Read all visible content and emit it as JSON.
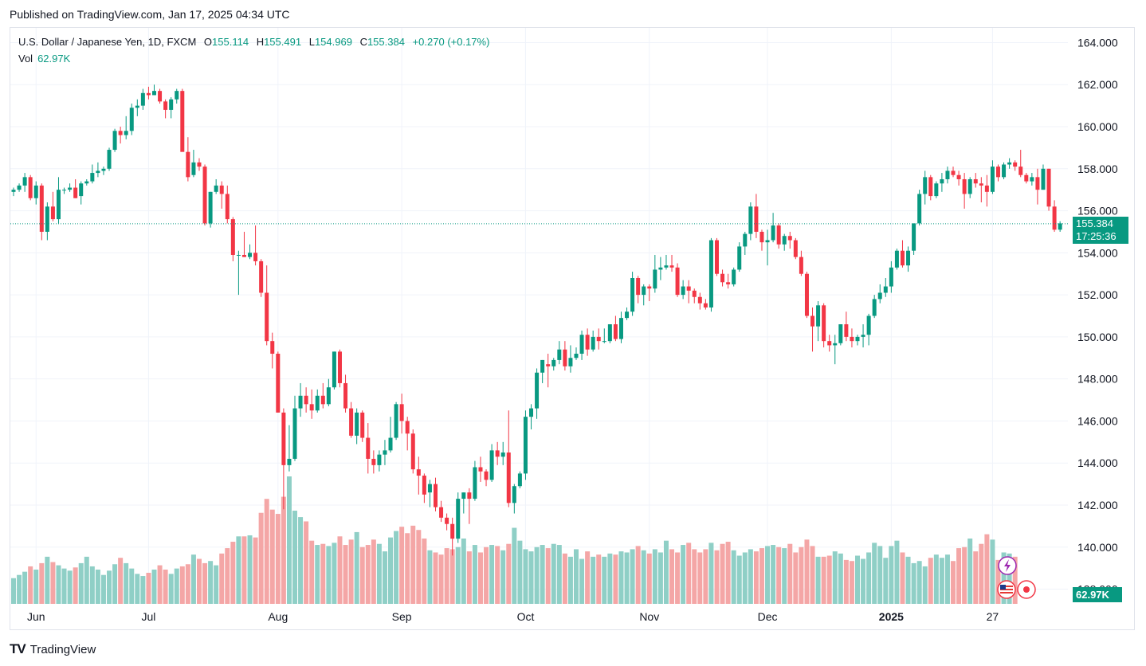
{
  "published": "Published on TradingView.com, Jan 17, 2025 04:34 UTC",
  "legend": {
    "symbol": "U.S. Dollar / Japanese Yen, 1D, FXCM",
    "o_label": "O",
    "o": "155.114",
    "h_label": "H",
    "h": "155.491",
    "l_label": "L",
    "l": "154.969",
    "c_label": "C",
    "c": "155.384",
    "change": "+0.270 (+0.17%)"
  },
  "volume": {
    "label": "Vol",
    "value": "62.97K"
  },
  "price_tag": {
    "value": "155.384",
    "countdown": "17:25:36"
  },
  "vol_tag": "62.97K",
  "footer": {
    "brand": "TradingView",
    "logo": "TV"
  },
  "colors": {
    "up": "#089981",
    "down": "#f23645",
    "vol_up": "#8fcfc6",
    "vol_down": "#f4a6a6",
    "grid": "#f0f3fa"
  },
  "chart_data": {
    "type": "candlestick",
    "y_ticks": [
      "164.000",
      "162.000",
      "160.000",
      "158.000",
      "156.000",
      "154.000",
      "152.000",
      "150.000",
      "148.000",
      "146.000",
      "144.000",
      "142.000",
      "140.000",
      "138.000"
    ],
    "ylim": [
      137.3,
      164.7
    ],
    "x_ticks": [
      {
        "label": "Jun",
        "bar": 4
      },
      {
        "label": "Jul",
        "bar": 24
      },
      {
        "label": "Aug",
        "bar": 47
      },
      {
        "label": "Sep",
        "bar": 69
      },
      {
        "label": "Oct",
        "bar": 91
      },
      {
        "label": "Nov",
        "bar": 113
      },
      {
        "label": "Dec",
        "bar": 134
      },
      {
        "label": "2025",
        "bar": 156
      },
      {
        "label": "27",
        "bar": 174
      }
    ],
    "ohlc": [
      [
        156.9,
        157.1,
        156.7,
        157.0
      ],
      [
        157.0,
        157.3,
        156.9,
        157.2
      ],
      [
        157.2,
        157.8,
        156.9,
        157.6
      ],
      [
        157.6,
        157.7,
        156.5,
        156.6
      ],
      [
        156.6,
        157.4,
        156.3,
        157.2
      ],
      [
        157.2,
        157.3,
        154.6,
        155.0
      ],
      [
        155.0,
        156.4,
        154.6,
        156.2
      ],
      [
        156.2,
        156.9,
        155.5,
        155.6
      ],
      [
        155.6,
        157.6,
        155.4,
        157.0
      ],
      [
        157.0,
        157.1,
        156.8,
        157.0
      ],
      [
        157.0,
        157.3,
        156.9,
        157.1
      ],
      [
        157.1,
        157.5,
        156.6,
        156.6
      ],
      [
        156.7,
        157.4,
        156.3,
        157.3
      ],
      [
        157.3,
        157.5,
        157.2,
        157.4
      ],
      [
        157.4,
        158.2,
        157.3,
        157.8
      ],
      [
        157.8,
        158.3,
        157.6,
        157.9
      ],
      [
        157.9,
        158.1,
        157.7,
        158.0
      ],
      [
        158.0,
        159.0,
        157.9,
        158.9
      ],
      [
        158.9,
        159.9,
        158.8,
        159.8
      ],
      [
        159.8,
        160.0,
        159.2,
        159.6
      ],
      [
        159.6,
        160.5,
        159.4,
        159.8
      ],
      [
        159.8,
        161.1,
        159.6,
        160.9
      ],
      [
        160.9,
        161.3,
        160.5,
        161.0
      ],
      [
        161.0,
        161.8,
        160.8,
        161.6
      ],
      [
        161.6,
        161.9,
        161.3,
        161.5
      ],
      [
        161.5,
        162.0,
        161.5,
        161.7
      ],
      [
        161.7,
        161.8,
        161.1,
        161.2
      ],
      [
        161.2,
        161.3,
        160.4,
        160.8
      ],
      [
        160.8,
        161.4,
        160.4,
        161.3
      ],
      [
        161.3,
        161.8,
        161.1,
        161.7
      ],
      [
        161.7,
        161.8,
        159.0,
        158.8
      ],
      [
        158.8,
        159.5,
        157.4,
        157.6
      ],
      [
        157.7,
        158.9,
        157.6,
        158.3
      ],
      [
        158.3,
        158.5,
        157.9,
        158.1
      ],
      [
        158.1,
        158.2,
        155.3,
        155.4
      ],
      [
        155.4,
        156.9,
        155.2,
        156.9
      ],
      [
        156.9,
        157.5,
        156.8,
        157.2
      ],
      [
        157.2,
        157.4,
        156.1,
        156.8
      ],
      [
        156.8,
        157.2,
        155.4,
        155.6
      ],
      [
        155.6,
        155.7,
        153.6,
        153.9
      ],
      [
        153.9,
        154.1,
        152.0,
        153.9
      ],
      [
        153.9,
        155.0,
        153.8,
        153.8
      ],
      [
        153.8,
        154.4,
        153.7,
        154.0
      ],
      [
        154.0,
        155.3,
        153.4,
        153.6
      ],
      [
        153.6,
        153.7,
        151.9,
        152.1
      ],
      [
        152.1,
        153.4,
        149.6,
        149.8
      ],
      [
        149.8,
        150.2,
        148.5,
        149.2
      ],
      [
        149.2,
        149.3,
        146.4,
        146.4
      ],
      [
        146.4,
        146.6,
        141.8,
        143.9
      ],
      [
        143.9,
        145.8,
        143.6,
        144.2
      ],
      [
        144.2,
        147.2,
        144.1,
        146.6
      ],
      [
        146.6,
        147.8,
        146.2,
        147.2
      ],
      [
        147.2,
        147.6,
        146.4,
        146.8
      ],
      [
        146.8,
        147.5,
        146.1,
        146.5
      ],
      [
        146.5,
        147.5,
        146.4,
        147.2
      ],
      [
        147.2,
        147.8,
        146.6,
        146.8
      ],
      [
        146.8,
        148.0,
        146.7,
        147.6
      ],
      [
        147.6,
        149.3,
        147.5,
        149.3
      ],
      [
        149.3,
        149.4,
        147.6,
        147.8
      ],
      [
        147.8,
        148.2,
        146.4,
        146.6
      ],
      [
        146.6,
        146.9,
        145.2,
        145.3
      ],
      [
        145.3,
        146.6,
        144.9,
        146.4
      ],
      [
        146.4,
        146.5,
        145.0,
        145.2
      ],
      [
        145.2,
        145.9,
        143.5,
        144.2
      ],
      [
        144.2,
        144.6,
        143.5,
        143.9
      ],
      [
        143.9,
        144.6,
        143.6,
        144.4
      ],
      [
        144.4,
        145.1,
        143.9,
        144.6
      ],
      [
        144.6,
        146.2,
        144.5,
        145.2
      ],
      [
        145.2,
        146.9,
        145.1,
        146.8
      ],
      [
        146.8,
        147.3,
        145.4,
        146.0
      ],
      [
        146.0,
        146.2,
        144.6,
        145.4
      ],
      [
        145.4,
        145.6,
        143.5,
        143.7
      ],
      [
        143.7,
        144.3,
        142.5,
        143.4
      ],
      [
        143.4,
        143.5,
        142.1,
        142.5
      ],
      [
        142.6,
        143.2,
        141.9,
        143.0
      ],
      [
        143.0,
        143.3,
        141.7,
        141.9
      ],
      [
        141.9,
        142.2,
        141.2,
        141.4
      ],
      [
        141.4,
        141.6,
        140.8,
        141.1
      ],
      [
        141.1,
        141.4,
        139.6,
        140.4
      ],
      [
        140.4,
        142.6,
        140.2,
        142.3
      ],
      [
        142.3,
        142.6,
        141.6,
        142.6
      ],
      [
        142.6,
        142.8,
        141.1,
        142.3
      ],
      [
        142.3,
        144.1,
        142.2,
        143.8
      ],
      [
        143.8,
        144.3,
        143.1,
        143.6
      ],
      [
        143.6,
        143.7,
        142.9,
        143.2
      ],
      [
        143.2,
        144.9,
        143.1,
        144.6
      ],
      [
        144.6,
        145.0,
        143.9,
        144.3
      ],
      [
        144.3,
        145.0,
        143.9,
        144.5
      ],
      [
        144.5,
        146.5,
        141.9,
        142.1
      ],
      [
        142.1,
        143.0,
        141.6,
        142.9
      ],
      [
        142.9,
        143.6,
        142.8,
        143.5
      ],
      [
        143.5,
        146.5,
        143.2,
        146.2
      ],
      [
        146.2,
        146.8,
        145.6,
        146.6
      ],
      [
        146.6,
        148.5,
        146.1,
        148.3
      ],
      [
        148.3,
        148.9,
        147.8,
        148.9
      ],
      [
        148.7,
        149.2,
        147.6,
        148.6
      ],
      [
        148.6,
        149.0,
        148.4,
        148.9
      ],
      [
        148.9,
        149.8,
        148.7,
        149.4
      ],
      [
        149.4,
        149.8,
        148.4,
        148.6
      ],
      [
        148.6,
        149.6,
        148.3,
        149.0
      ],
      [
        149.0,
        149.5,
        148.9,
        149.2
      ],
      [
        149.2,
        150.3,
        148.9,
        150.1
      ],
      [
        150.1,
        150.4,
        149.1,
        149.4
      ],
      [
        149.4,
        150.3,
        149.3,
        150.0
      ],
      [
        150.0,
        150.4,
        149.4,
        149.8
      ],
      [
        149.8,
        150.4,
        149.7,
        149.8
      ],
      [
        149.8,
        150.6,
        149.7,
        150.6
      ],
      [
        150.6,
        151.0,
        149.8,
        149.9
      ],
      [
        149.9,
        151.2,
        149.7,
        150.9
      ],
      [
        150.9,
        151.4,
        150.8,
        151.2
      ],
      [
        151.2,
        153.1,
        151.0,
        152.8
      ],
      [
        152.8,
        152.9,
        151.6,
        152.0
      ],
      [
        152.0,
        152.5,
        151.5,
        152.4
      ],
      [
        152.4,
        152.5,
        151.7,
        152.3
      ],
      [
        152.3,
        153.9,
        152.1,
        153.2
      ],
      [
        153.2,
        153.8,
        152.7,
        153.3
      ],
      [
        153.3,
        153.9,
        153.2,
        153.4
      ],
      [
        153.4,
        153.9,
        153.1,
        153.3
      ],
      [
        153.3,
        153.5,
        151.9,
        152.0
      ],
      [
        152.0,
        152.7,
        151.8,
        152.4
      ],
      [
        152.4,
        152.7,
        151.6,
        152.2
      ],
      [
        152.2,
        152.3,
        151.6,
        151.9
      ],
      [
        151.9,
        152.1,
        151.3,
        151.6
      ],
      [
        151.6,
        151.8,
        151.3,
        151.4
      ],
      [
        151.4,
        154.7,
        151.2,
        154.6
      ],
      [
        154.6,
        154.7,
        152.9,
        153.0
      ],
      [
        153.0,
        153.2,
        152.4,
        152.6
      ],
      [
        152.6,
        153.0,
        152.3,
        152.5
      ],
      [
        152.5,
        153.3,
        152.4,
        153.2
      ],
      [
        153.2,
        154.5,
        153.1,
        154.3
      ],
      [
        154.3,
        155.0,
        153.9,
        154.9
      ],
      [
        154.9,
        156.4,
        154.6,
        156.2
      ],
      [
        156.2,
        156.8,
        154.7,
        155.0
      ],
      [
        155.0,
        155.1,
        154.1,
        154.5
      ],
      [
        154.5,
        155.1,
        153.4,
        154.6
      ],
      [
        154.6,
        155.9,
        154.5,
        155.3
      ],
      [
        155.3,
        155.4,
        154.2,
        154.4
      ],
      [
        154.4,
        154.9,
        154.1,
        154.8
      ],
      [
        154.8,
        155.0,
        154.2,
        154.6
      ],
      [
        154.6,
        154.7,
        153.7,
        153.8
      ],
      [
        153.8,
        154.1,
        152.9,
        153.0
      ],
      [
        153.0,
        153.1,
        150.9,
        151.0
      ],
      [
        151.0,
        151.4,
        149.3,
        150.5
      ],
      [
        150.5,
        151.7,
        149.8,
        151.5
      ],
      [
        151.5,
        151.6,
        149.5,
        149.8
      ],
      [
        149.8,
        150.1,
        149.3,
        149.6
      ],
      [
        149.6,
        150.1,
        148.7,
        149.7
      ],
      [
        149.7,
        150.6,
        149.6,
        150.6
      ],
      [
        150.6,
        151.2,
        149.8,
        150.0
      ],
      [
        150.0,
        150.4,
        149.5,
        149.8
      ],
      [
        149.8,
        150.1,
        149.6,
        150.0
      ],
      [
        150.0,
        150.6,
        149.5,
        150.1
      ],
      [
        150.1,
        151.1,
        149.6,
        151.0
      ],
      [
        151.0,
        152.0,
        150.9,
        151.8
      ],
      [
        151.8,
        152.5,
        151.6,
        152.1
      ],
      [
        152.1,
        152.8,
        151.9,
        152.4
      ],
      [
        152.4,
        153.6,
        152.1,
        153.3
      ],
      [
        153.3,
        154.2,
        153.2,
        154.1
      ],
      [
        154.1,
        154.6,
        153.3,
        153.4
      ],
      [
        153.4,
        154.3,
        153.1,
        154.1
      ],
      [
        154.1,
        155.4,
        153.9,
        155.4
      ],
      [
        155.4,
        157.0,
        155.3,
        156.8
      ],
      [
        156.8,
        157.9,
        156.3,
        157.6
      ],
      [
        157.6,
        157.7,
        156.5,
        156.7
      ],
      [
        156.7,
        157.4,
        156.6,
        157.3
      ],
      [
        157.3,
        157.8,
        156.9,
        157.5
      ],
      [
        157.5,
        158.1,
        157.3,
        157.9
      ],
      [
        157.9,
        158.1,
        157.6,
        157.7
      ],
      [
        157.7,
        157.9,
        157.2,
        157.5
      ],
      [
        157.5,
        157.8,
        156.1,
        156.8
      ],
      [
        156.8,
        157.6,
        156.6,
        157.5
      ],
      [
        157.5,
        157.8,
        157.1,
        157.3
      ],
      [
        157.3,
        157.6,
        156.4,
        157.2
      ],
      [
        157.2,
        157.7,
        156.2,
        156.9
      ],
      [
        156.9,
        158.4,
        156.8,
        158.1
      ],
      [
        158.1,
        158.2,
        157.4,
        157.6
      ],
      [
        157.6,
        158.3,
        157.5,
        158.2
      ],
      [
        158.2,
        158.5,
        158.0,
        158.3
      ],
      [
        158.3,
        158.4,
        157.9,
        158.1
      ],
      [
        158.1,
        158.9,
        157.6,
        157.7
      ],
      [
        157.7,
        157.8,
        157.3,
        157.4
      ],
      [
        157.4,
        157.8,
        157.2,
        157.6
      ],
      [
        157.6,
        158.0,
        156.3,
        157.0
      ],
      [
        157.0,
        158.2,
        157.0,
        158.0
      ],
      [
        158.0,
        158.0,
        156.0,
        156.2
      ],
      [
        156.2,
        156.5,
        155.0,
        155.1
      ],
      [
        155.1,
        155.5,
        155.0,
        155.4
      ]
    ],
    "volume": [
      24,
      27,
      30,
      35,
      32,
      38,
      44,
      39,
      36,
      33,
      31,
      34,
      38,
      44,
      35,
      32,
      27,
      31,
      37,
      43,
      38,
      33,
      28,
      26,
      29,
      32,
      36,
      32,
      28,
      33,
      35,
      37,
      46,
      42,
      38,
      40,
      36,
      47,
      52,
      58,
      63,
      63,
      64,
      62,
      85,
      98,
      88,
      84,
      100,
      119,
      87,
      81,
      77,
      59,
      55,
      56,
      54,
      57,
      63,
      55,
      60,
      67,
      53,
      55,
      60,
      56,
      49,
      62,
      68,
      72,
      66,
      73,
      69,
      61,
      50,
      48,
      46,
      52,
      51,
      53,
      61,
      49,
      55,
      48,
      53,
      55,
      54,
      50,
      56,
      71,
      59,
      51,
      49,
      53,
      55,
      52,
      56,
      55,
      47,
      44,
      51,
      42,
      49,
      44,
      46,
      44,
      47,
      46,
      49,
      48,
      51,
      54,
      50,
      47,
      51,
      48,
      59,
      51,
      48,
      55,
      57,
      51,
      48,
      51,
      57,
      50,
      56,
      58,
      50,
      45,
      48,
      51,
      49,
      52,
      54,
      55,
      53,
      52,
      56,
      48,
      53,
      60,
      54,
      44,
      44,
      45,
      49,
      47,
      41,
      40,
      45,
      42,
      48,
      57,
      54,
      43,
      54,
      59,
      48,
      44,
      38,
      40,
      35,
      43,
      46,
      43,
      46,
      40,
      52,
      53,
      61,
      49,
      56,
      65,
      60,
      41,
      48,
      47,
      44
    ]
  }
}
